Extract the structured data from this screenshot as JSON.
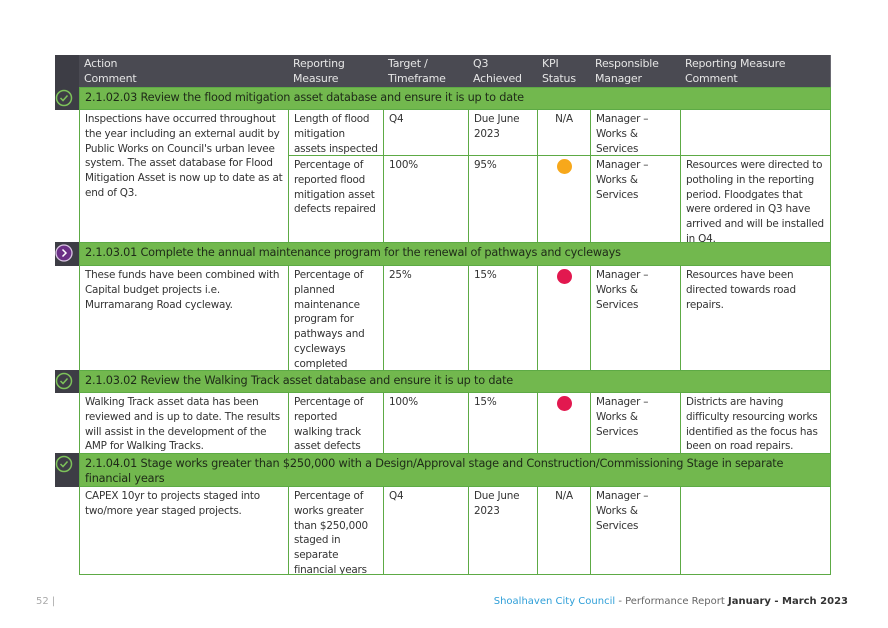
{
  "header": {
    "columns": [
      "Action\nComment",
      "Reporting\nMeasure",
      "Target /\nTimeframe",
      "Q3\nAchieved",
      "KPI\nStatus",
      "Responsible\nManager",
      "Reporting Measure\nComment"
    ]
  },
  "sections": [
    {
      "title": "2.1.02.03 Review the flood mitigation asset database and ensure it is up to date",
      "icon": "check",
      "comment": "Inspections have occurred throughout the year including an external audit by Public Works on Council's urban levee system. The asset database for Flood Mitigation Asset is now up to date as at end of Q3.",
      "measures": [
        {
          "measure": "Length of flood mitigation assets inspected",
          "target": "Q4",
          "achieved": "Due June 2023",
          "kpi": "N/A",
          "manager": "Manager – Works & Services"
        },
        {
          "measure": "Percentage of reported flood mitigation asset defects repaired",
          "target": "100%",
          "achieved": "95%",
          "kpi_color": "#f7a81b",
          "manager": "Manager – Works & Services",
          "note": "Resources were directed to potholing in the reporting period. Floodgates that were ordered in Q3 have arrived and will be installed in Q4."
        }
      ]
    },
    {
      "title": "2.1.03.01 Complete the annual maintenance program for the renewal of pathways and cycleways",
      "icon": "arrow",
      "comment": "These funds have been combined with Capital budget projects i.e. Murramarang Road cycleway.",
      "measures": [
        {
          "measure": "Percentage of planned maintenance program for pathways and cycleways completed",
          "target": "25%",
          "achieved": "15%",
          "kpi_color": "#e2184f",
          "manager": "Manager – Works & Services",
          "note": "Resources have been directed towards road repairs."
        }
      ]
    },
    {
      "title": "2.1.03.02 Review the Walking Track asset database and ensure it is up to date",
      "icon": "check",
      "comment": "Walking Track asset data has been reviewed and is up to date. The results will assist in the development of the AMP for Walking Tracks.",
      "measures": [
        {
          "measure": "Percentage of reported walking track asset defects repaired",
          "target": "100%",
          "achieved": "15%",
          "kpi_color": "#e2184f",
          "manager": "Manager – Works & Services",
          "note": "Districts are having difficulty resourcing works identified as the focus has been on road repairs."
        }
      ]
    },
    {
      "title": "2.1.04.01 Stage works greater than $250,000 with a Design/Approval stage and Construction/Commissioning Stage in separate financial years",
      "icon": "check",
      "comment": "CAPEX 10yr to projects staged into two/more year staged projects.",
      "measures": [
        {
          "measure": "Percentage of works greater than $250,000 staged in separate financial years",
          "target": "Q4",
          "achieved": "Due June 2023",
          "kpi": "N/A",
          "manager": "Manager – Works & Services"
        }
      ]
    }
  ],
  "footer": {
    "page": "52 |",
    "org": "Shoalhaven City Council",
    "report": "- Performance Report",
    "period": "January - March 2023"
  }
}
